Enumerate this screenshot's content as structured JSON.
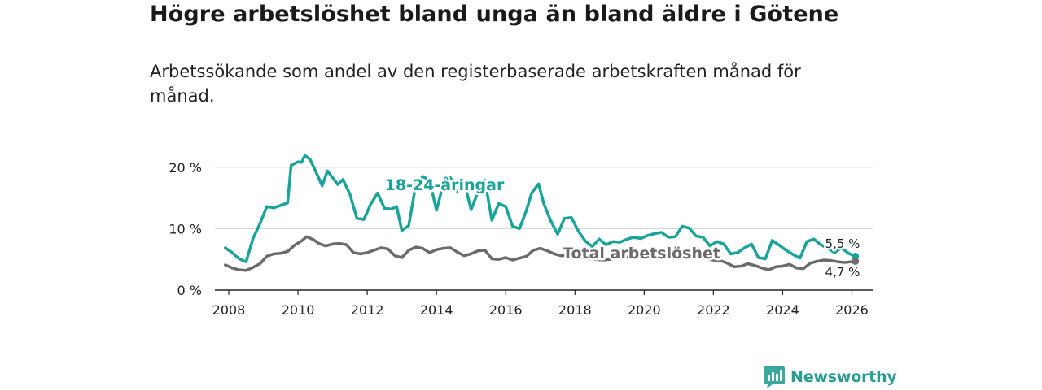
{
  "title": "Högre arbetslöshet bland unga än bland äldre i Götene",
  "subtitle": "Arbetssökande som andel av den registerbaserade arbetskraften månad för månad.",
  "brand": {
    "name": "Newsworthy"
  },
  "colors": {
    "youth": "#1aa39a",
    "total": "#6b6b6b",
    "grid": "#d9d9d9",
    "axis": "#222222",
    "brand": "#2a9d92"
  },
  "chart_data": {
    "type": "line",
    "title": "Högre arbetslöshet bland unga än bland äldre i Götene",
    "xlabel": "",
    "ylabel": "",
    "xlim": [
      2007.6,
      2026.6
    ],
    "ylim": [
      0,
      22.5
    ],
    "x_ticks": [
      2008,
      2010,
      2012,
      2014,
      2016,
      2018,
      2020,
      2022,
      2024,
      2026
    ],
    "x_tick_labels": [
      "2008",
      "2010",
      "2012",
      "2014",
      "2016",
      "2018",
      "2020",
      "2022",
      "2024",
      "2026"
    ],
    "y_ticks": [
      0,
      10,
      20
    ],
    "y_tick_labels": [
      "0 %",
      "10 %",
      "20 %"
    ],
    "grid": true,
    "series": [
      {
        "name": "18-24-åringar",
        "label": "18-24-åringar",
        "last_value_label": "5,5 %",
        "points": [
          [
            2007.9,
            6.9
          ],
          [
            2008.1,
            6.1
          ],
          [
            2008.3,
            5.1
          ],
          [
            2008.5,
            4.6
          ],
          [
            2008.7,
            8.4
          ],
          [
            2008.9,
            10.8
          ],
          [
            2009.1,
            13.6
          ],
          [
            2009.3,
            13.4
          ],
          [
            2009.5,
            13.8
          ],
          [
            2009.7,
            14.2
          ],
          [
            2009.8,
            20.3
          ],
          [
            2010.0,
            20.9
          ],
          [
            2010.1,
            20.8
          ],
          [
            2010.2,
            21.9
          ],
          [
            2010.35,
            21.3
          ],
          [
            2010.5,
            19.5
          ],
          [
            2010.7,
            17.0
          ],
          [
            2010.85,
            19.4
          ],
          [
            2011.0,
            18.3
          ],
          [
            2011.15,
            17.2
          ],
          [
            2011.3,
            18.0
          ],
          [
            2011.5,
            15.6
          ],
          [
            2011.7,
            11.7
          ],
          [
            2011.9,
            11.5
          ],
          [
            2012.1,
            14.0
          ],
          [
            2012.3,
            15.8
          ],
          [
            2012.5,
            13.3
          ],
          [
            2012.7,
            13.2
          ],
          [
            2012.85,
            13.6
          ],
          [
            2013.0,
            9.7
          ],
          [
            2013.2,
            10.5
          ],
          [
            2013.4,
            17.1
          ],
          [
            2013.6,
            18.5
          ],
          [
            2013.8,
            17.9
          ],
          [
            2014.0,
            13.0
          ],
          [
            2014.2,
            17.4
          ],
          [
            2014.4,
            18.3
          ],
          [
            2014.6,
            16.1
          ],
          [
            2014.8,
            17.6
          ],
          [
            2015.0,
            13.1
          ],
          [
            2015.2,
            16.0
          ],
          [
            2015.4,
            17.9
          ],
          [
            2015.6,
            11.4
          ],
          [
            2015.8,
            14.1
          ],
          [
            2016.0,
            13.6
          ],
          [
            2016.2,
            10.4
          ],
          [
            2016.4,
            10.0
          ],
          [
            2016.6,
            13.0
          ],
          [
            2016.75,
            15.8
          ],
          [
            2016.95,
            17.3
          ],
          [
            2017.1,
            14.1
          ],
          [
            2017.3,
            11.3
          ],
          [
            2017.5,
            9.1
          ],
          [
            2017.7,
            11.7
          ],
          [
            2017.9,
            11.8
          ],
          [
            2018.1,
            9.6
          ],
          [
            2018.3,
            8.0
          ],
          [
            2018.5,
            7.1
          ],
          [
            2018.7,
            8.3
          ],
          [
            2018.9,
            7.4
          ],
          [
            2019.1,
            7.9
          ],
          [
            2019.3,
            7.8
          ],
          [
            2019.5,
            8.3
          ],
          [
            2019.7,
            8.6
          ],
          [
            2019.9,
            8.4
          ],
          [
            2020.1,
            8.9
          ],
          [
            2020.3,
            9.2
          ],
          [
            2020.5,
            9.4
          ],
          [
            2020.7,
            8.6
          ],
          [
            2020.9,
            8.7
          ],
          [
            2021.1,
            10.4
          ],
          [
            2021.3,
            10.1
          ],
          [
            2021.5,
            8.8
          ],
          [
            2021.7,
            8.6
          ],
          [
            2021.9,
            7.2
          ],
          [
            2022.1,
            7.9
          ],
          [
            2022.3,
            7.5
          ],
          [
            2022.5,
            5.9
          ],
          [
            2022.7,
            6.1
          ],
          [
            2022.9,
            6.9
          ],
          [
            2023.1,
            7.5
          ],
          [
            2023.3,
            5.3
          ],
          [
            2023.5,
            5.1
          ],
          [
            2023.7,
            8.1
          ],
          [
            2023.9,
            7.3
          ],
          [
            2024.1,
            6.5
          ],
          [
            2024.3,
            5.8
          ],
          [
            2024.5,
            5.2
          ],
          [
            2024.7,
            7.9
          ],
          [
            2024.9,
            8.3
          ],
          [
            2025.1,
            7.4
          ],
          [
            2025.3,
            6.8
          ],
          [
            2025.5,
            6.1
          ],
          [
            2025.7,
            6.9
          ],
          [
            2025.9,
            6.0
          ],
          [
            2026.1,
            5.5
          ]
        ]
      },
      {
        "name": "Total arbetslöshet",
        "label": "Total arbetslöshet",
        "last_value_label": "4,7 %",
        "points": [
          [
            2007.9,
            4.1
          ],
          [
            2008.1,
            3.6
          ],
          [
            2008.3,
            3.3
          ],
          [
            2008.5,
            3.2
          ],
          [
            2008.7,
            3.7
          ],
          [
            2008.9,
            4.3
          ],
          [
            2009.1,
            5.5
          ],
          [
            2009.3,
            5.9
          ],
          [
            2009.5,
            6.0
          ],
          [
            2009.7,
            6.3
          ],
          [
            2009.9,
            7.3
          ],
          [
            2010.1,
            8.0
          ],
          [
            2010.25,
            8.7
          ],
          [
            2010.45,
            8.2
          ],
          [
            2010.6,
            7.6
          ],
          [
            2010.8,
            7.2
          ],
          [
            2011.0,
            7.5
          ],
          [
            2011.2,
            7.6
          ],
          [
            2011.4,
            7.4
          ],
          [
            2011.6,
            6.1
          ],
          [
            2011.8,
            5.9
          ],
          [
            2012.0,
            6.1
          ],
          [
            2012.2,
            6.5
          ],
          [
            2012.4,
            6.9
          ],
          [
            2012.6,
            6.7
          ],
          [
            2012.8,
            5.6
          ],
          [
            2013.0,
            5.3
          ],
          [
            2013.2,
            6.5
          ],
          [
            2013.4,
            7.0
          ],
          [
            2013.6,
            6.8
          ],
          [
            2013.8,
            6.1
          ],
          [
            2014.0,
            6.6
          ],
          [
            2014.2,
            6.8
          ],
          [
            2014.4,
            6.9
          ],
          [
            2014.6,
            6.2
          ],
          [
            2014.8,
            5.6
          ],
          [
            2015.0,
            5.9
          ],
          [
            2015.2,
            6.4
          ],
          [
            2015.4,
            6.5
          ],
          [
            2015.6,
            5.1
          ],
          [
            2015.8,
            5.0
          ],
          [
            2016.0,
            5.3
          ],
          [
            2016.2,
            4.9
          ],
          [
            2016.4,
            5.2
          ],
          [
            2016.6,
            5.5
          ],
          [
            2016.8,
            6.5
          ],
          [
            2017.0,
            6.8
          ],
          [
            2017.2,
            6.4
          ],
          [
            2017.4,
            5.9
          ],
          [
            2017.6,
            5.6
          ],
          [
            2017.8,
            5.7
          ],
          [
            2018.0,
            5.5
          ],
          [
            2018.2,
            5.3
          ],
          [
            2018.4,
            5.1
          ],
          [
            2018.6,
            5.0
          ],
          [
            2018.8,
            4.9
          ],
          [
            2019.0,
            5.0
          ],
          [
            2019.2,
            5.1
          ],
          [
            2019.4,
            5.3
          ],
          [
            2019.6,
            5.4
          ],
          [
            2019.8,
            5.6
          ],
          [
            2020.0,
            5.9
          ],
          [
            2020.2,
            6.1
          ],
          [
            2020.4,
            6.2
          ],
          [
            2020.6,
            6.0
          ],
          [
            2020.8,
            5.9
          ],
          [
            2021.0,
            6.1
          ],
          [
            2021.2,
            6.0
          ],
          [
            2021.4,
            5.7
          ],
          [
            2021.6,
            5.4
          ],
          [
            2021.8,
            5.1
          ],
          [
            2022.0,
            4.9
          ],
          [
            2022.2,
            4.8
          ],
          [
            2022.4,
            4.4
          ],
          [
            2022.6,
            3.8
          ],
          [
            2022.8,
            3.9
          ],
          [
            2023.0,
            4.3
          ],
          [
            2023.2,
            4.0
          ],
          [
            2023.4,
            3.6
          ],
          [
            2023.6,
            3.3
          ],
          [
            2023.8,
            3.8
          ],
          [
            2024.0,
            3.9
          ],
          [
            2024.2,
            4.2
          ],
          [
            2024.4,
            3.6
          ],
          [
            2024.6,
            3.5
          ],
          [
            2024.8,
            4.4
          ],
          [
            2025.0,
            4.7
          ],
          [
            2025.2,
            4.9
          ],
          [
            2025.4,
            4.8
          ],
          [
            2025.6,
            4.6
          ],
          [
            2025.8,
            4.5
          ],
          [
            2026.1,
            4.7
          ]
        ]
      }
    ]
  }
}
